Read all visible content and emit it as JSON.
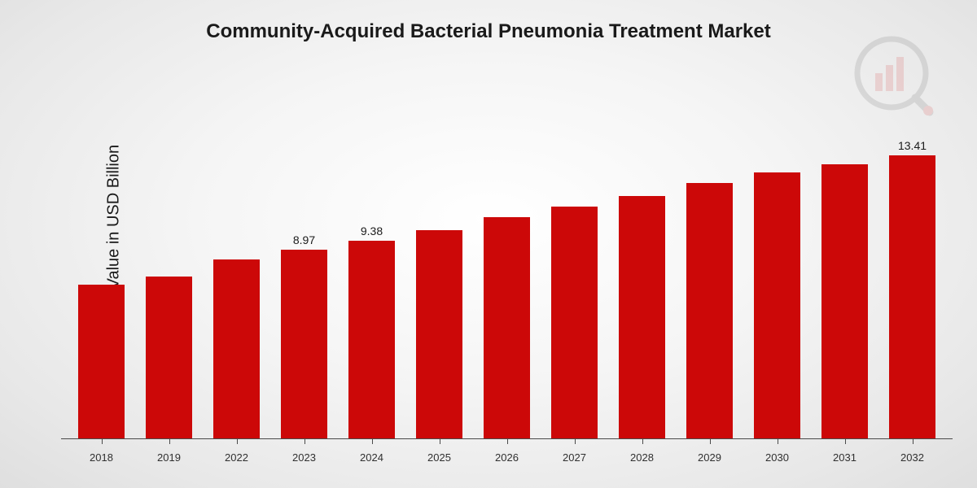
{
  "chart": {
    "type": "bar",
    "title": "Community-Acquired Bacterial Pneumonia Treatment Market",
    "title_fontsize": 24,
    "title_color": "#1a1a1a",
    "ylabel": "Market Value in USD Billion",
    "ylabel_fontsize": 20,
    "ylabel_color": "#1a1a1a",
    "categories": [
      "2018",
      "2019",
      "2022",
      "2023",
      "2024",
      "2025",
      "2026",
      "2027",
      "2028",
      "2029",
      "2030",
      "2031",
      "2032"
    ],
    "values": [
      7.3,
      7.7,
      8.5,
      8.97,
      9.38,
      9.9,
      10.5,
      11.0,
      11.5,
      12.1,
      12.6,
      13.0,
      13.41
    ],
    "value_labels": [
      "",
      "",
      "",
      "8.97",
      "9.38",
      "",
      "",
      "",
      "",
      "",
      "",
      "",
      "13.41"
    ],
    "bar_color": "#cc0808",
    "baseline_color": "#4a4a4a",
    "xtick_color": "#303030",
    "xtick_fontsize": 13,
    "value_label_fontsize": 14,
    "ymax": 15.0,
    "bar_width_ratio": 0.68,
    "background": "radial-gradient",
    "bg_inner": "#ffffff",
    "bg_outer": "#dcdcdc",
    "watermark": {
      "opacity": 0.12,
      "bars_color": "#cc0808",
      "ring_color": "#3a3a3a"
    }
  }
}
